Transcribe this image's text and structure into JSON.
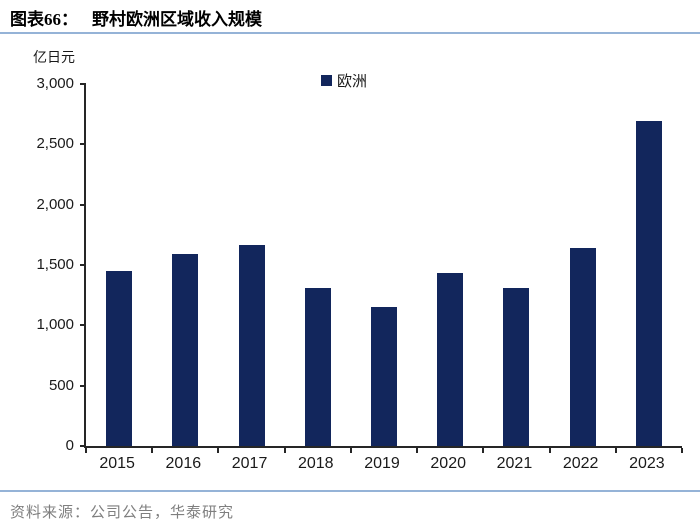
{
  "header": {
    "title_label": "图表66：",
    "title_text": "野村欧洲区域收入规模"
  },
  "chart_data": {
    "type": "bar",
    "title": "野村欧洲区域收入规模",
    "unit_label": "亿日元",
    "legend": [
      "欧洲"
    ],
    "legend_position": "top-center",
    "categories": [
      "2015",
      "2016",
      "2017",
      "2018",
      "2019",
      "2020",
      "2021",
      "2022",
      "2023"
    ],
    "values": [
      1450,
      1590,
      1670,
      1310,
      1150,
      1430,
      1310,
      1640,
      2690
    ],
    "xlabel": "",
    "ylabel": "亿日元",
    "ylim": [
      0,
      3000
    ],
    "ytick_step": 500,
    "ytick_labels": [
      "0",
      "500",
      "1,000",
      "1,500",
      "2,000",
      "2,500",
      "3,000"
    ],
    "grid": false,
    "bar_color": "#12265c"
  },
  "footer": {
    "source": "资料来源：公司公告，华泰研究"
  },
  "colors": {
    "bar": "#12265c",
    "rule": "#95b3d7",
    "axis": "#262626",
    "source_text": "#7f7f7f"
  }
}
